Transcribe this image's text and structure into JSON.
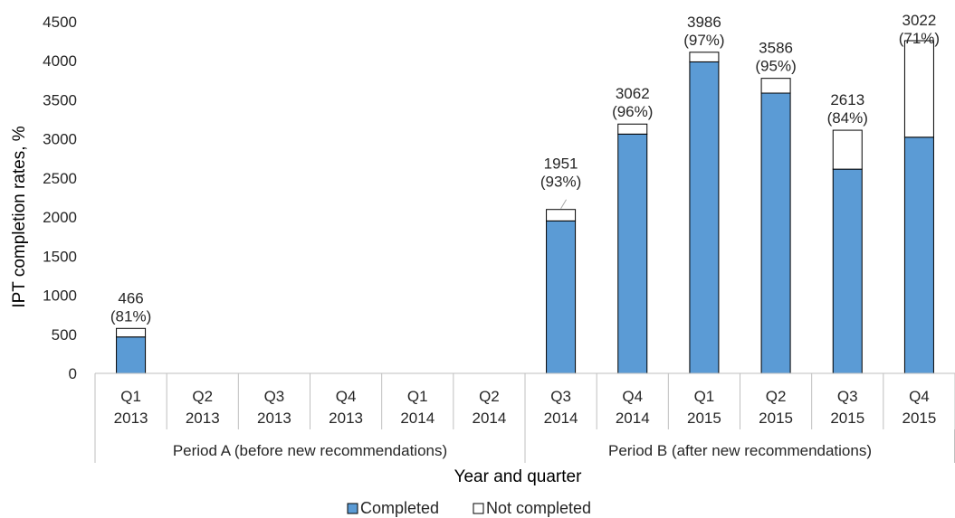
{
  "chart_data": {
    "type": "bar",
    "stacked": true,
    "title": "",
    "xlabel": "Year and quarter",
    "ylabel": "IPT completion rates, %",
    "ylim": [
      0,
      4500
    ],
    "ytick_step": 500,
    "grid": false,
    "legend_position": "bottom",
    "categories": [
      [
        "Q1",
        "2013"
      ],
      [
        "Q2",
        "2013"
      ],
      [
        "Q3",
        "2013"
      ],
      [
        "Q4",
        "2013"
      ],
      [
        "Q1",
        "2014"
      ],
      [
        "Q2",
        "2014"
      ],
      [
        "Q3",
        "2014"
      ],
      [
        "Q4",
        "2014"
      ],
      [
        "Q1",
        "2015"
      ],
      [
        "Q2",
        "2015"
      ],
      [
        "Q3",
        "2015"
      ],
      [
        "Q4",
        "2015"
      ]
    ],
    "groups": [
      {
        "label": "Period A (before new recommendations)",
        "categories": 6
      },
      {
        "label": "Period B (after new recommendations)",
        "categories": 6
      }
    ],
    "series": [
      {
        "name": "Completed",
        "color": "#5b9bd5",
        "values": [
          466,
          0,
          0,
          0,
          0,
          0,
          1951,
          3062,
          3986,
          3586,
          2613,
          3022
        ]
      },
      {
        "name": "Not completed",
        "color": "#ffffff",
        "values": [
          109,
          0,
          0,
          0,
          0,
          0,
          146,
          128,
          123,
          189,
          498,
          1235
        ]
      }
    ],
    "data_labels": [
      [
        "466",
        "(81%)"
      ],
      null,
      null,
      null,
      null,
      null,
      [
        "1951",
        "(93%)"
      ],
      [
        "3062",
        "(96%)"
      ],
      [
        "3986",
        "(97%)"
      ],
      [
        "3586",
        "(95%)"
      ],
      [
        "2613",
        "(84%)"
      ],
      [
        "3022",
        "(71%)"
      ]
    ]
  }
}
